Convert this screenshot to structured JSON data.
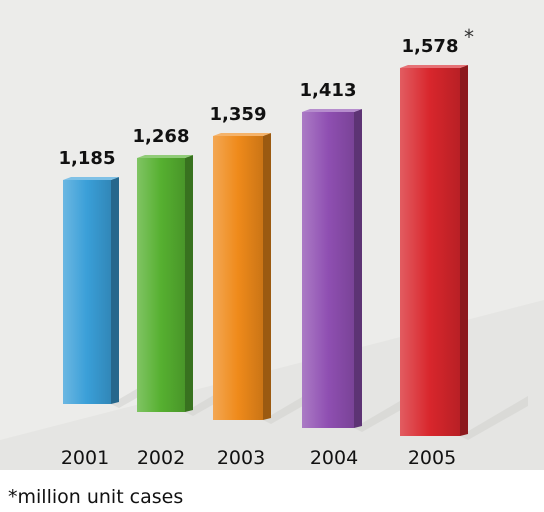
{
  "chart_data": {
    "type": "bar",
    "categories": [
      "2001",
      "2002",
      "2003",
      "2004",
      "2005"
    ],
    "values": [
      1185,
      1268,
      1359,
      1413,
      1578
    ],
    "value_labels": [
      "1,185",
      "1,268",
      "1,359",
      "1,413",
      "1,578"
    ],
    "value_label_marker": "*",
    "footnote": "*million unit cases",
    "title": "",
    "xlabel": "",
    "ylabel": "",
    "ylim": [
      900,
      1600
    ],
    "grid": false,
    "legend": "none",
    "colors": [
      "#3a9fd8",
      "#56b030",
      "#ef8a1a",
      "#8f4fb2",
      "#d8262c"
    ],
    "background": "#ececea"
  }
}
